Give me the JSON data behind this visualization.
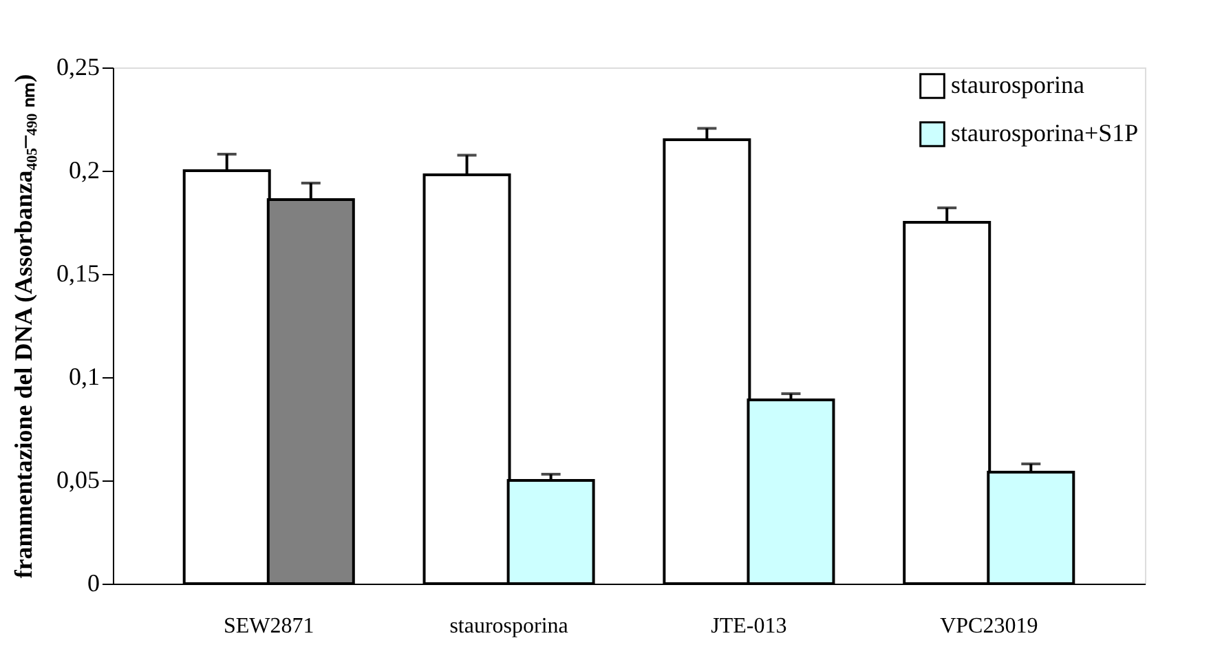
{
  "chart_data": {
    "type": "bar",
    "ylabel": "frammentazione del DNA (Assorbanza₄₀₅–₄₉₀ ₙₘ)",
    "categories": [
      "SEW2871",
      "staurosporina",
      "JTE-013",
      "VPC23019"
    ],
    "series": [
      {
        "name": "staurosporina",
        "color": "#ffffff",
        "values": [
          0.2,
          0.198,
          0.215,
          0.175
        ],
        "errors": [
          0.008,
          0.0095,
          0.0055,
          0.007
        ]
      },
      {
        "name": "staurosporina+S1P",
        "color": "#ccffff",
        "colors": [
          "#808080",
          "#ccffff",
          "#ccffff",
          "#ccffff"
        ],
        "values": [
          0.186,
          0.05,
          0.089,
          0.054
        ],
        "errors": [
          0.008,
          0.003,
          0.003,
          0.004
        ]
      }
    ],
    "ylim": [
      0,
      0.25
    ],
    "yticks": [
      0,
      {
        "value": 0.05,
        "label": "0,05"
      },
      {
        "value": 0.1,
        "label": "0,1"
      },
      {
        "value": 0.15,
        "label": "0,15"
      },
      {
        "value": 0.2,
        "label": "0,2"
      },
      {
        "value": 0.25,
        "label": "0,25"
      }
    ],
    "grid": false,
    "legend": "top right"
  }
}
